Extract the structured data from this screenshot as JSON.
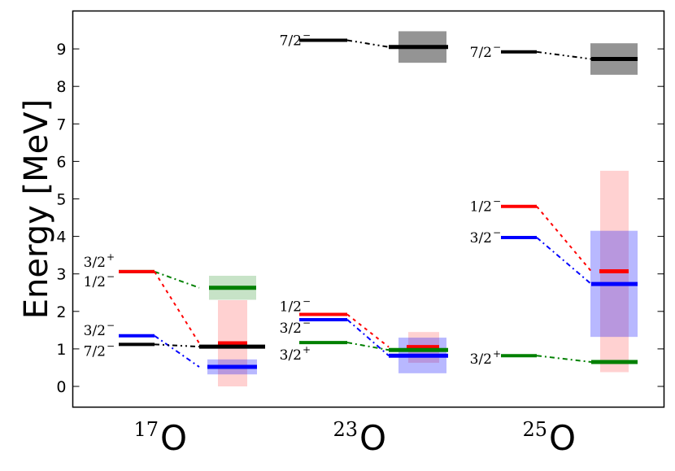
{
  "chart_data": {
    "type": "level-scheme",
    "title": "",
    "ylabel": "Energy [MeV]",
    "xlabel": "",
    "ylim": [
      -0.6,
      9.95
    ],
    "yticks": [
      "0",
      "1",
      "2",
      "3",
      "4",
      "5",
      "6",
      "7",
      "8",
      "9"
    ],
    "grid": false,
    "colors": {
      "3/2+": "#008000",
      "1/2-": "#ff0000",
      "3/2-": "#0000ff",
      "7/2-": "#000000",
      "axis": "#000000"
    },
    "groups": [
      {
        "isotope": {
          "mass": "17",
          "symbol": "O"
        },
        "experiment": [
          {
            "state": "3/2+",
            "energy": 3.06
          },
          {
            "state": "1/2-",
            "energy": 3.06
          },
          {
            "state": "3/2-",
            "energy": 1.35
          },
          {
            "state": "7/2-",
            "energy": 1.12
          }
        ],
        "theory": [
          {
            "state": "3/2+",
            "energy": 2.63,
            "low": 2.31,
            "high": 2.95
          },
          {
            "state": "1/2-",
            "energy": 1.15,
            "low": 0.0,
            "high": 2.3
          },
          {
            "state": "3/2-",
            "energy": 0.52,
            "low": 0.32,
            "high": 0.72
          },
          {
            "state": "7/2-",
            "energy": 1.06,
            "low": 1.06,
            "high": 1.06
          }
        ],
        "labels": [
          {
            "state": "3/2+",
            "text": "3/2",
            "sup": "+"
          },
          {
            "state": "1/2-",
            "text": "1/2",
            "sup": "−"
          },
          {
            "state": "3/2-",
            "text": "3/2",
            "sup": "−"
          },
          {
            "state": "7/2-",
            "text": "7/2",
            "sup": "−"
          }
        ]
      },
      {
        "isotope": {
          "mass": "23",
          "symbol": "O"
        },
        "experiment": [
          {
            "state": "7/2-",
            "energy": 9.23
          },
          {
            "state": "1/2-",
            "energy": 1.92
          },
          {
            "state": "3/2-",
            "energy": 1.78
          },
          {
            "state": "3/2+",
            "energy": 1.17
          }
        ],
        "theory": [
          {
            "state": "7/2-",
            "energy": 9.05,
            "low": 8.63,
            "high": 9.47
          },
          {
            "state": "1/2-",
            "energy": 1.05,
            "low": 0.63,
            "high": 1.45
          },
          {
            "state": "3/2-",
            "energy": 0.82,
            "low": 0.35,
            "high": 1.3
          },
          {
            "state": "3/2+",
            "energy": 0.97,
            "low": 0.97,
            "high": 0.97
          }
        ],
        "labels": [
          {
            "state": "7/2-",
            "text": "7/2",
            "sup": "−"
          },
          {
            "state": "1/2-",
            "text": "1/2",
            "sup": "−"
          },
          {
            "state": "3/2-",
            "text": "3/2",
            "sup": "−"
          },
          {
            "state": "3/2+",
            "text": "3/2",
            "sup": "+"
          }
        ]
      },
      {
        "isotope": {
          "mass": "25",
          "symbol": "O"
        },
        "experiment": [
          {
            "state": "7/2-",
            "energy": 8.92
          },
          {
            "state": "1/2-",
            "energy": 4.8
          },
          {
            "state": "3/2-",
            "energy": 3.97
          },
          {
            "state": "3/2+",
            "energy": 0.82
          }
        ],
        "theory": [
          {
            "state": "7/2-",
            "energy": 8.73,
            "low": 8.31,
            "high": 9.15
          },
          {
            "state": "1/2-",
            "energy": 3.07,
            "low": 0.38,
            "high": 5.75
          },
          {
            "state": "3/2-",
            "energy": 2.73,
            "low": 1.32,
            "high": 4.15
          },
          {
            "state": "3/2+",
            "energy": 0.65,
            "low": 0.65,
            "high": 0.65
          }
        ],
        "labels": [
          {
            "state": "7/2-",
            "text": "7/2",
            "sup": "−"
          },
          {
            "state": "1/2-",
            "text": "1/2",
            "sup": "−"
          },
          {
            "state": "3/2-",
            "text": "3/2",
            "sup": "−"
          },
          {
            "state": "3/2+",
            "text": "3/2",
            "sup": "+"
          }
        ]
      }
    ]
  }
}
